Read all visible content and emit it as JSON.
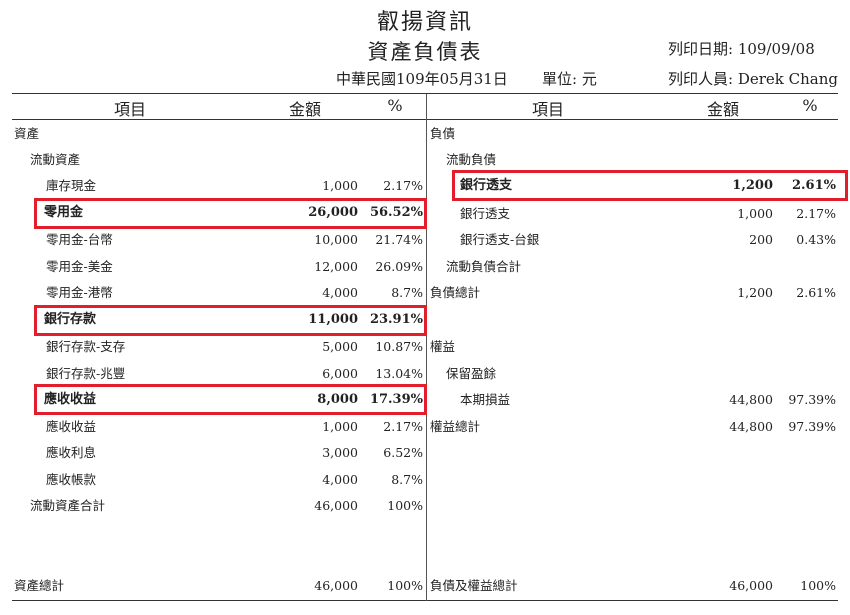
{
  "header": {
    "company": "叡揚資訊",
    "title": "資產負債表",
    "date_line": "中華民國109年05月31日",
    "unit": "單位: 元",
    "print_date": "列印日期: 109/09/08",
    "print_user": "列印人員: Derek Chang"
  },
  "columns": {
    "item": "項目",
    "amount": "金額",
    "percent": "%"
  },
  "left_rows": [
    {
      "label": "資產",
      "amount": "",
      "percent": "",
      "level": 0
    },
    {
      "label": "流動資產",
      "amount": "",
      "percent": "",
      "level": 1
    },
    {
      "label": "庫存現金",
      "amount": "1,000",
      "percent": "2.17%",
      "level": 2
    },
    {
      "label": "零用金",
      "amount": "26,000",
      "percent": "56.52%",
      "level": 1,
      "bold": true
    },
    {
      "label": "零用金-台幣",
      "amount": "10,000",
      "percent": "21.74%",
      "level": 2
    },
    {
      "label": "零用金-美金",
      "amount": "12,000",
      "percent": "26.09%",
      "level": 2
    },
    {
      "label": "零用金-港幣",
      "amount": "4,000",
      "percent": "8.7%",
      "level": 2
    },
    {
      "label": "銀行存款",
      "amount": "11,000",
      "percent": "23.91%",
      "level": 1,
      "bold": true
    },
    {
      "label": "銀行存款-支存",
      "amount": "5,000",
      "percent": "10.87%",
      "level": 2
    },
    {
      "label": "銀行存款-兆豐",
      "amount": "6,000",
      "percent": "13.04%",
      "level": 2
    },
    {
      "label": "應收收益",
      "amount": "8,000",
      "percent": "17.39%",
      "level": 1,
      "bold": true
    },
    {
      "label": "應收收益",
      "amount": "1,000",
      "percent": "2.17%",
      "level": 2
    },
    {
      "label": "應收利息",
      "amount": "3,000",
      "percent": "6.52%",
      "level": 2
    },
    {
      "label": "應收帳款",
      "amount": "4,000",
      "percent": "8.7%",
      "level": 2
    },
    {
      "label": "流動資產合計",
      "amount": "46,000",
      "percent": "100%",
      "level": 1
    }
  ],
  "right_rows": [
    {
      "label": "負債",
      "amount": "",
      "percent": "",
      "level": 0
    },
    {
      "label": "流動負債",
      "amount": "",
      "percent": "",
      "level": 1
    },
    {
      "label": "銀行透支",
      "amount": "1,200",
      "percent": "2.61%",
      "level": 2,
      "bold": true
    },
    {
      "label": "銀行透支",
      "amount": "1,000",
      "percent": "2.17%",
      "level": 2
    },
    {
      "label": "銀行透支-台銀",
      "amount": "200",
      "percent": "0.43%",
      "level": 2
    },
    {
      "label": "流動負債合計",
      "amount": "",
      "percent": "",
      "level": 1
    },
    {
      "label": "負債總計",
      "amount": "1,200",
      "percent": "2.61%",
      "level": 0
    },
    {
      "label": "",
      "amount": "",
      "percent": "",
      "level": 0
    },
    {
      "label": "權益",
      "amount": "",
      "percent": "",
      "level": 0
    },
    {
      "label": "保留盈餘",
      "amount": "",
      "percent": "",
      "level": 1
    },
    {
      "label": "本期損益",
      "amount": "44,800",
      "percent": "97.39%",
      "level": 2
    },
    {
      "label": "權益總計",
      "amount": "44,800",
      "percent": "97.39%",
      "level": 0
    }
  ],
  "footer": {
    "left_label": "資產總計",
    "left_amount": "46,000",
    "left_percent": "100%",
    "right_label": "負債及權益總計",
    "right_amount": "46,000",
    "right_percent": "100%"
  },
  "highlight_color": "#e31e2c"
}
